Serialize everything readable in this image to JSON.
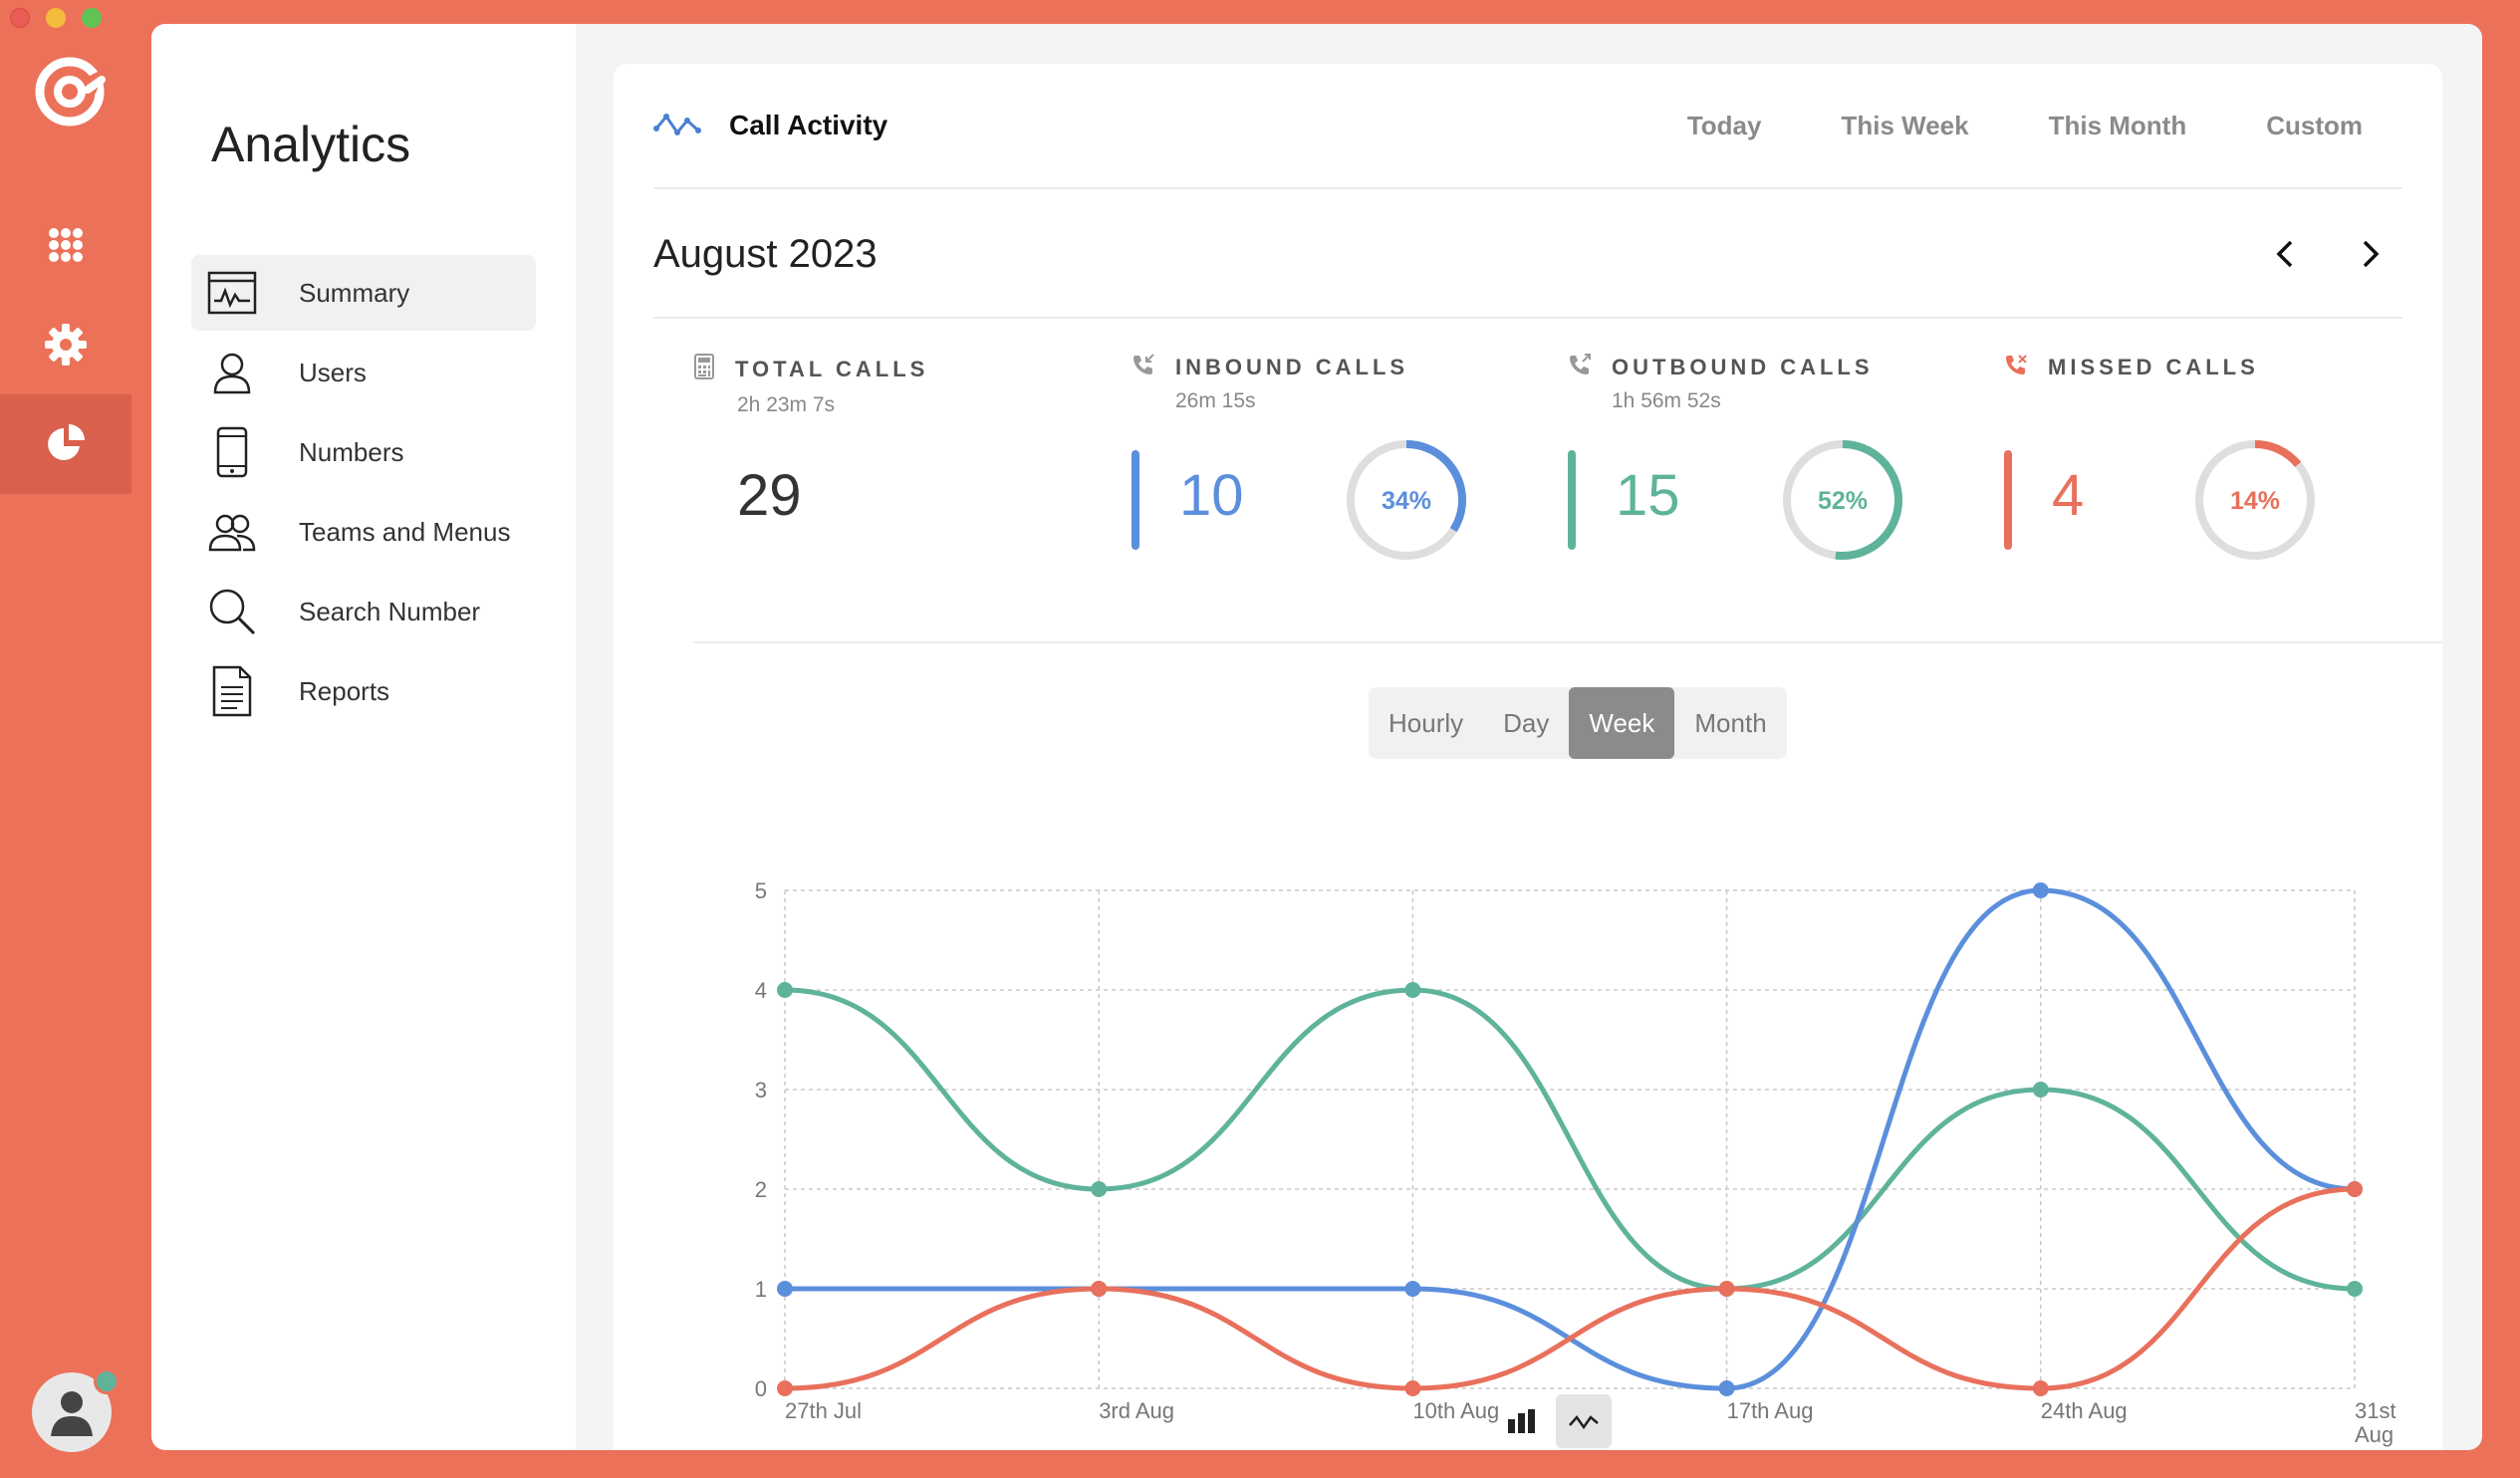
{
  "sidebar": {
    "title": "Analytics",
    "items": [
      {
        "label": "Summary",
        "icon": "summary-icon",
        "active": true
      },
      {
        "label": "Users",
        "icon": "user-icon"
      },
      {
        "label": "Numbers",
        "icon": "phone-icon"
      },
      {
        "label": "Teams and Menus",
        "icon": "team-icon"
      },
      {
        "label": "Search Number",
        "icon": "search-icon"
      },
      {
        "label": "Reports",
        "icon": "document-icon"
      }
    ]
  },
  "header": {
    "title": "Call Activity",
    "tabs": [
      "Today",
      "This Week",
      "This Month",
      "Custom"
    ]
  },
  "period": {
    "label": "August 2023"
  },
  "stats": {
    "total": {
      "title": "TOTAL CALLS",
      "duration": "2h 23m 7s",
      "value": "29"
    },
    "inbound": {
      "title": "INBOUND CALLS",
      "duration": "26m 15s",
      "value": "10",
      "percent": "34%",
      "fraction": 0.34,
      "color": "#5b8fdc"
    },
    "outbound": {
      "title": "OUTBOUND CALLS",
      "duration": "1h 56m 52s",
      "value": "15",
      "percent": "52%",
      "fraction": 0.52,
      "color": "#5fb39b"
    },
    "missed": {
      "title": "MISSED CALLS",
      "duration": "",
      "value": "4",
      "percent": "14%",
      "fraction": 0.14,
      "color": "#e8705c"
    }
  },
  "granularity": {
    "options": [
      "Hourly",
      "Day",
      "Week",
      "Month"
    ],
    "selected": "Week"
  },
  "colors": {
    "accent": "#ec7159",
    "inbound": "#5b8fdc",
    "outbound": "#5fb39b",
    "missed": "#e8705c"
  },
  "chart_data": {
    "type": "line",
    "categories": [
      "27th Jul",
      "3rd Aug",
      "10th Aug",
      "17th Aug",
      "24th Aug",
      "31st Aug"
    ],
    "ylim": [
      0,
      5
    ],
    "yticks": [
      0,
      1,
      2,
      3,
      4,
      5
    ],
    "grid": true,
    "series": [
      {
        "key": "outbound",
        "color": "#5fb39b",
        "values": [
          4,
          2,
          4,
          1,
          3,
          1
        ]
      },
      {
        "key": "inbound",
        "color": "#5b8fdc",
        "values": [
          1,
          1,
          1,
          0,
          5,
          2
        ]
      },
      {
        "key": "missed",
        "color": "#e8705c",
        "values": [
          0,
          1,
          0,
          1,
          0,
          2
        ]
      }
    ]
  }
}
